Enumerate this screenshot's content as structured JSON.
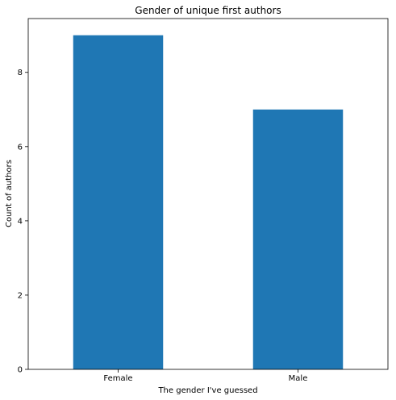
{
  "chart_data": {
    "type": "bar",
    "title": "Gender of unique first authors",
    "xlabel": "The gender I've guessed",
    "ylabel": "Count of authors",
    "categories": [
      "Female",
      "Male"
    ],
    "values": [
      9,
      7
    ],
    "ylim": [
      0,
      9.45
    ],
    "yticks": [
      0,
      2,
      4,
      6,
      8
    ],
    "bar_color": "#1f77b4",
    "grid": false,
    "legend": "none"
  }
}
